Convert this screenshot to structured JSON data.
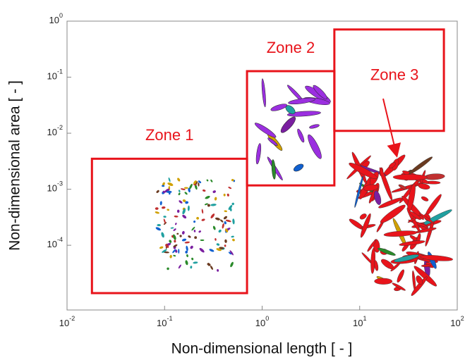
{
  "chart_data": {
    "type": "zones",
    "xlabel": "Non-dimensional length  [ - ]",
    "ylabel": "Non-dimensional area  [ - ]",
    "xscale": "log",
    "yscale": "log",
    "xlim": [
      0.01,
      100
    ],
    "ylim": [
      7e-06,
      1
    ],
    "xticks": [
      {
        "value": 0.01,
        "label": "10",
        "exponent": "-2"
      },
      {
        "value": 0.1,
        "label": "10",
        "exponent": "-1"
      },
      {
        "value": 1,
        "label": "10",
        "exponent": "0"
      },
      {
        "value": 10,
        "label": "10",
        "exponent": "1"
      },
      {
        "value": 100,
        "label": "10",
        "exponent": "2"
      }
    ],
    "yticks": [
      {
        "value": 0.0001,
        "label": "10",
        "exponent": "-4"
      },
      {
        "value": 0.001,
        "label": "10",
        "exponent": "-3"
      },
      {
        "value": 0.01,
        "label": "10",
        "exponent": "-2"
      },
      {
        "value": 0.1,
        "label": "10",
        "exponent": "-1"
      },
      {
        "value": 1,
        "label": "10",
        "exponent": "0"
      }
    ],
    "color": "#e8141b",
    "zones": [
      {
        "label": "Zone 1",
        "x": [
          0.018,
          0.7
        ],
        "y": [
          1.4e-05,
          0.0035
        ]
      },
      {
        "label": "Zone 2",
        "x": [
          0.7,
          5.5
        ],
        "y": [
          0.00117,
          0.128
        ]
      },
      {
        "label": "Zone 3",
        "x": [
          5.5,
          73
        ],
        "y": [
          0.011,
          0.71
        ]
      }
    ]
  }
}
